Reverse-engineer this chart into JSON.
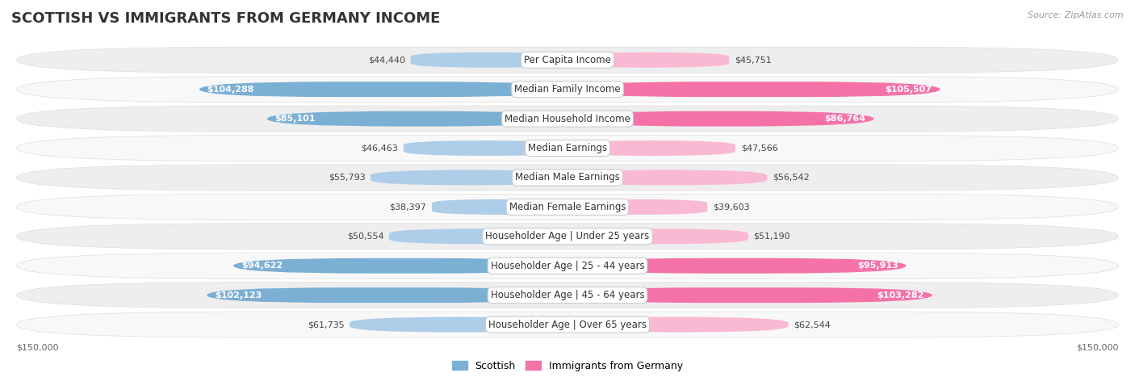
{
  "title": "SCOTTISH VS IMMIGRANTS FROM GERMANY INCOME",
  "source": "Source: ZipAtlas.com",
  "categories": [
    "Per Capita Income",
    "Median Family Income",
    "Median Household Income",
    "Median Earnings",
    "Median Male Earnings",
    "Median Female Earnings",
    "Householder Age | Under 25 years",
    "Householder Age | 25 - 44 years",
    "Householder Age | 45 - 64 years",
    "Householder Age | Over 65 years"
  ],
  "scottish_values": [
    44440,
    104288,
    85101,
    46463,
    55793,
    38397,
    50554,
    94622,
    102123,
    61735
  ],
  "germany_values": [
    45751,
    105507,
    86764,
    47566,
    56542,
    39603,
    51190,
    95913,
    103282,
    62544
  ],
  "scottish_labels": [
    "$44,440",
    "$104,288",
    "$85,101",
    "$46,463",
    "$55,793",
    "$38,397",
    "$50,554",
    "$94,622",
    "$102,123",
    "$61,735"
  ],
  "germany_labels": [
    "$45,751",
    "$105,507",
    "$86,764",
    "$47,566",
    "$56,542",
    "$39,603",
    "$51,190",
    "$95,913",
    "$103,282",
    "$62,544"
  ],
  "max_value": 150000,
  "scottish_color": "#7bafd4",
  "germany_color": "#f472a8",
  "scottish_light_color": "#aecde8",
  "germany_light_color": "#f9b8d3",
  "bar_height": 0.52,
  "row_bg_even": "#eeeeee",
  "row_bg_odd": "#f8f8f8",
  "label_box_color": "#ffffff",
  "label_box_border": "#cccccc",
  "title_fontsize": 13,
  "source_fontsize": 8,
  "label_fontsize": 8,
  "category_fontsize": 8.5,
  "axis_label_fontsize": 8,
  "legend_fontsize": 9,
  "background_color": "#ffffff",
  "x_axis_label_left": "$150,000",
  "x_axis_label_right": "$150,000",
  "inside_label_threshold": 0.45
}
